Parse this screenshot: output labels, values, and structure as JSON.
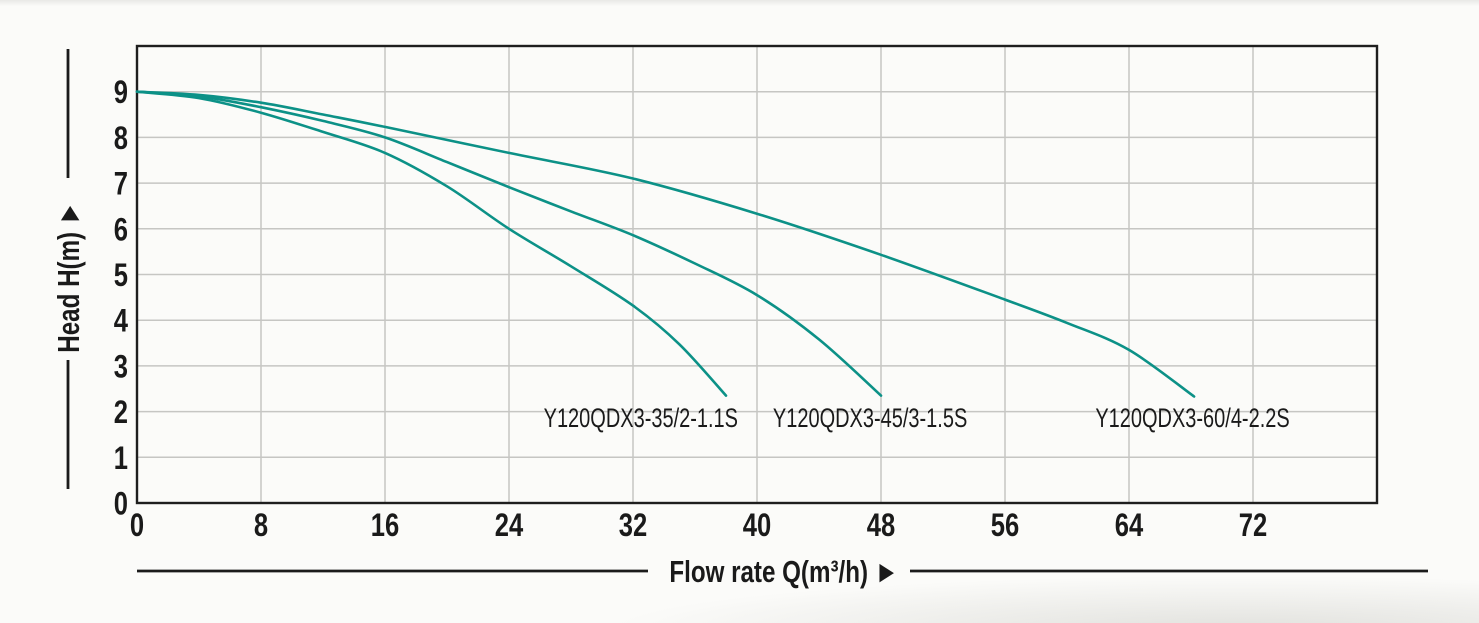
{
  "chart_data": {
    "type": "line",
    "title": "",
    "xlabel": "Flow rate Q(m³/h) ►",
    "ylabel": "Head H(m) ▲",
    "xlim": [
      0,
      80
    ],
    "ylim": [
      0,
      10
    ],
    "x_ticks": [
      0,
      8,
      16,
      24,
      32,
      40,
      48,
      56,
      64,
      72
    ],
    "y_ticks": [
      0,
      1,
      2,
      3,
      4,
      5,
      6,
      7,
      8,
      9
    ],
    "grid": true,
    "curve_color": "#0c9187",
    "series": [
      {
        "name": "Y120QDX3-35/2-1.1S",
        "points": [
          [
            0,
            9
          ],
          [
            4,
            8.86
          ],
          [
            8,
            8.54
          ],
          [
            12,
            8.12
          ],
          [
            16,
            7.66
          ],
          [
            20,
            6.93
          ],
          [
            24,
            6.0
          ],
          [
            28,
            5.18
          ],
          [
            32,
            4.32
          ],
          [
            35,
            3.47
          ],
          [
            38,
            2.35
          ]
        ],
        "label_q": 32.5,
        "label_h": 1.88
      },
      {
        "name": "Y120QDX3-45/3-1.5S",
        "points": [
          [
            0,
            9
          ],
          [
            4,
            8.9
          ],
          [
            8,
            8.66
          ],
          [
            12,
            8.36
          ],
          [
            16,
            8.0
          ],
          [
            20,
            7.46
          ],
          [
            24,
            6.91
          ],
          [
            28,
            6.38
          ],
          [
            32,
            5.86
          ],
          [
            36,
            5.24
          ],
          [
            40,
            4.55
          ],
          [
            44,
            3.58
          ],
          [
            48,
            2.35
          ]
        ],
        "label_q": 47.3,
        "label_h": 1.88
      },
      {
        "name": "Y120QDX3-60/4-2.2S",
        "points": [
          [
            0,
            9
          ],
          [
            4,
            8.93
          ],
          [
            8,
            8.76
          ],
          [
            12,
            8.5
          ],
          [
            16,
            8.23
          ],
          [
            24,
            7.66
          ],
          [
            32,
            7.1
          ],
          [
            40,
            6.33
          ],
          [
            48,
            5.43
          ],
          [
            56,
            4.45
          ],
          [
            60,
            3.94
          ],
          [
            64,
            3.35
          ],
          [
            68.2,
            2.33
          ]
        ],
        "label_q": 68.1,
        "label_h": 1.88
      }
    ]
  }
}
